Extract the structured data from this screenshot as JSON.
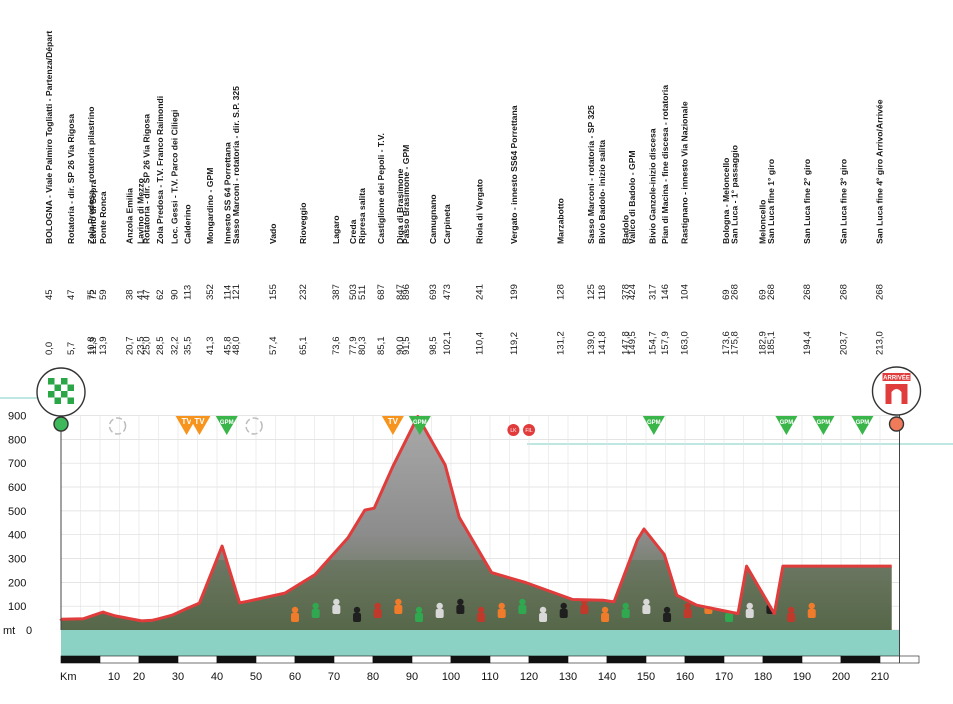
{
  "chart_data": {
    "type": "area",
    "xlabel": "Km",
    "ylabel": "mt",
    "xlim": [
      0,
      215
    ],
    "ylim": [
      0,
      900
    ],
    "xticks": [
      10,
      20,
      30,
      40,
      50,
      60,
      70,
      80,
      90,
      100,
      110,
      120,
      130,
      140,
      150,
      160,
      170,
      180,
      190,
      200,
      210
    ],
    "yticks": [
      0,
      100,
      200,
      300,
      400,
      500,
      600,
      700,
      800,
      900
    ],
    "grid": true,
    "series": [
      {
        "profile": [
          [
            0,
            45
          ],
          [
            5.7,
            47
          ],
          [
            10.8,
            75
          ],
          [
            11.3,
            72
          ],
          [
            13.9,
            59
          ],
          [
            20.7,
            38
          ],
          [
            23.5,
            41
          ],
          [
            25.0,
            47
          ],
          [
            28.5,
            62
          ],
          [
            32.2,
            90
          ],
          [
            35.5,
            113
          ],
          [
            41.3,
            352
          ],
          [
            45.8,
            114
          ],
          [
            48.0,
            121
          ],
          [
            57.4,
            155
          ],
          [
            65.1,
            232
          ],
          [
            73.6,
            387
          ],
          [
            77.9,
            503
          ],
          [
            80.3,
            511
          ],
          [
            85.1,
            687
          ],
          [
            90.0,
            847
          ],
          [
            91.5,
            896
          ],
          [
            98.5,
            693
          ],
          [
            102.1,
            473
          ],
          [
            110.4,
            241
          ],
          [
            119.2,
            199
          ],
          [
            131.2,
            128
          ],
          [
            139.0,
            125
          ],
          [
            141.8,
            118
          ],
          [
            147.8,
            378
          ],
          [
            149.5,
            424
          ],
          [
            154.7,
            317
          ],
          [
            157.9,
            146
          ],
          [
            163.0,
            104
          ],
          [
            173.6,
            69
          ],
          [
            175.8,
            268
          ],
          [
            182.9,
            69
          ],
          [
            185.1,
            268
          ],
          [
            194.4,
            268
          ],
          [
            203.7,
            268
          ],
          [
            213.0,
            268
          ]
        ]
      }
    ],
    "waypoints": [
      {
        "km": "0,0",
        "alt": "45",
        "name": "BOLOGNA - Viale Palmiro Togliatti - Partenza/Départ"
      },
      {
        "km": "5,7",
        "alt": "47",
        "name": "Rotatoria - dir. SP 26 Via Rigosa"
      },
      {
        "km": "10,8",
        "alt": "75",
        "name": "Zola Predosa - rotatoria pilastrino"
      },
      {
        "km": "11,3",
        "alt": "72",
        "name": "Lavino di Sopra"
      },
      {
        "km": "13,9",
        "alt": "59",
        "name": "Ponte Ronca"
      },
      {
        "km": "20,7",
        "alt": "38",
        "name": "Anzola Emilia"
      },
      {
        "km": "23,5",
        "alt": "41",
        "name": "Lavino di Mezzo"
      },
      {
        "km": "25,0",
        "alt": "47",
        "name": "Rotatoria - dir. SP 26 Via Rigosa"
      },
      {
        "km": "28,5",
        "alt": "62",
        "name": "Zola Predosa - T.V. Franco Raimondi"
      },
      {
        "km": "32,2",
        "alt": "90",
        "name": "Loc. Gessi - T.V. Parco dei Ciliegi"
      },
      {
        "km": "35,5",
        "alt": "113",
        "name": "Calderino"
      },
      {
        "km": "41,3",
        "alt": "352",
        "name": "Mongardino - GPM"
      },
      {
        "km": "45,8",
        "alt": "114",
        "name": "Innesto SS 64 Porrettana"
      },
      {
        "km": "48,0",
        "alt": "121",
        "name": "Sasso Marconi - rotatoria - dir. S.P. 325"
      },
      {
        "km": "57,4",
        "alt": "155",
        "name": "Vado"
      },
      {
        "km": "65,1",
        "alt": "232",
        "name": "Rioveggio"
      },
      {
        "km": "73,6",
        "alt": "387",
        "name": "Lagaro"
      },
      {
        "km": "77,9",
        "alt": "503",
        "name": "Creda"
      },
      {
        "km": "80,3",
        "alt": "511",
        "name": "Ripresa salita"
      },
      {
        "km": "85,1",
        "alt": "687",
        "name": "Castiglione dei Pepoli - T.V."
      },
      {
        "km": "90,0",
        "alt": "847",
        "name": "Diga di Brasimone"
      },
      {
        "km": "91,5",
        "alt": "896",
        "name": "Passo Brasimone - GPM"
      },
      {
        "km": "98,5",
        "alt": "693",
        "name": "Camugnano"
      },
      {
        "km": "102,1",
        "alt": "473",
        "name": "Carpineta"
      },
      {
        "km": "110,4",
        "alt": "241",
        "name": "Riola di Vergato"
      },
      {
        "km": "119,2",
        "alt": "199",
        "name": "Vergato - innesto SS64 Porrettana"
      },
      {
        "km": "131,2",
        "alt": "128",
        "name": "Marzabotto"
      },
      {
        "km": "139,0",
        "alt": "125",
        "name": "Sasso Marconi - rotatoria - SP 325"
      },
      {
        "km": "141,8",
        "alt": "118",
        "name": "Bivio Badolo- inizio salita"
      },
      {
        "km": "147,8",
        "alt": "378",
        "name": "Badolo"
      },
      {
        "km": "149,5",
        "alt": "424",
        "name": "Valico di Badolo - GPM"
      },
      {
        "km": "154,7",
        "alt": "317",
        "name": "Bivio Ganzole-inizio discesa"
      },
      {
        "km": "157,9",
        "alt": "146",
        "name": "Pian di Macina - fine discesa - rotatoria"
      },
      {
        "km": "163,0",
        "alt": "104",
        "name": "Rastignano - innesto Via Nazionale"
      },
      {
        "km": "173,6",
        "alt": "69",
        "name": "Bologna - Meloncello"
      },
      {
        "km": "175,8",
        "alt": "268",
        "name": "San Luca - 1° passaggio"
      },
      {
        "km": "182,9",
        "alt": "69",
        "name": "Meloncello"
      },
      {
        "km": "185,1",
        "alt": "268",
        "name": "San Luca fine 1° giro"
      },
      {
        "km": "194,4",
        "alt": "268",
        "name": "San Luca fine 2° giro"
      },
      {
        "km": "203,7",
        "alt": "268",
        "name": "San Luca fine 3° giro"
      },
      {
        "km": "213,0",
        "alt": "268",
        "name": "San Luca fine 4° giro Arrivo/Arrivée"
      }
    ],
    "markers": [
      {
        "km": 14.5,
        "label": "",
        "kind": "sprint-empty"
      },
      {
        "km": 32.2,
        "label": "TV",
        "kind": "tv"
      },
      {
        "km": 35.5,
        "label": "TV",
        "kind": "tv"
      },
      {
        "km": 42.5,
        "label": "GPM",
        "kind": "gpm"
      },
      {
        "km": 49.5,
        "label": "",
        "kind": "sprint-empty"
      },
      {
        "km": 85.1,
        "label": "TV",
        "kind": "tv"
      },
      {
        "km": 92.0,
        "label": "GPM",
        "kind": "gpm"
      },
      {
        "km": 116.0,
        "label": "LK",
        "kind": "feed"
      },
      {
        "km": 120.0,
        "label": "FIL",
        "kind": "feed"
      },
      {
        "km": 152.0,
        "label": "GPM",
        "kind": "gpm"
      },
      {
        "km": 186.0,
        "label": "GPM",
        "kind": "gpm"
      },
      {
        "km": 195.5,
        "label": "GPM",
        "kind": "gpm"
      },
      {
        "km": 205.5,
        "label": "GPM",
        "kind": "gpm"
      }
    ],
    "finish_label": "ARRIVÉE",
    "colors": {
      "profile": "#e03c3c",
      "band": "#8cd2c4",
      "gpm": "#39b54a",
      "tv": "#f7941d",
      "feed": "#e23b3b",
      "teal_line": "#7fcfc3"
    }
  }
}
